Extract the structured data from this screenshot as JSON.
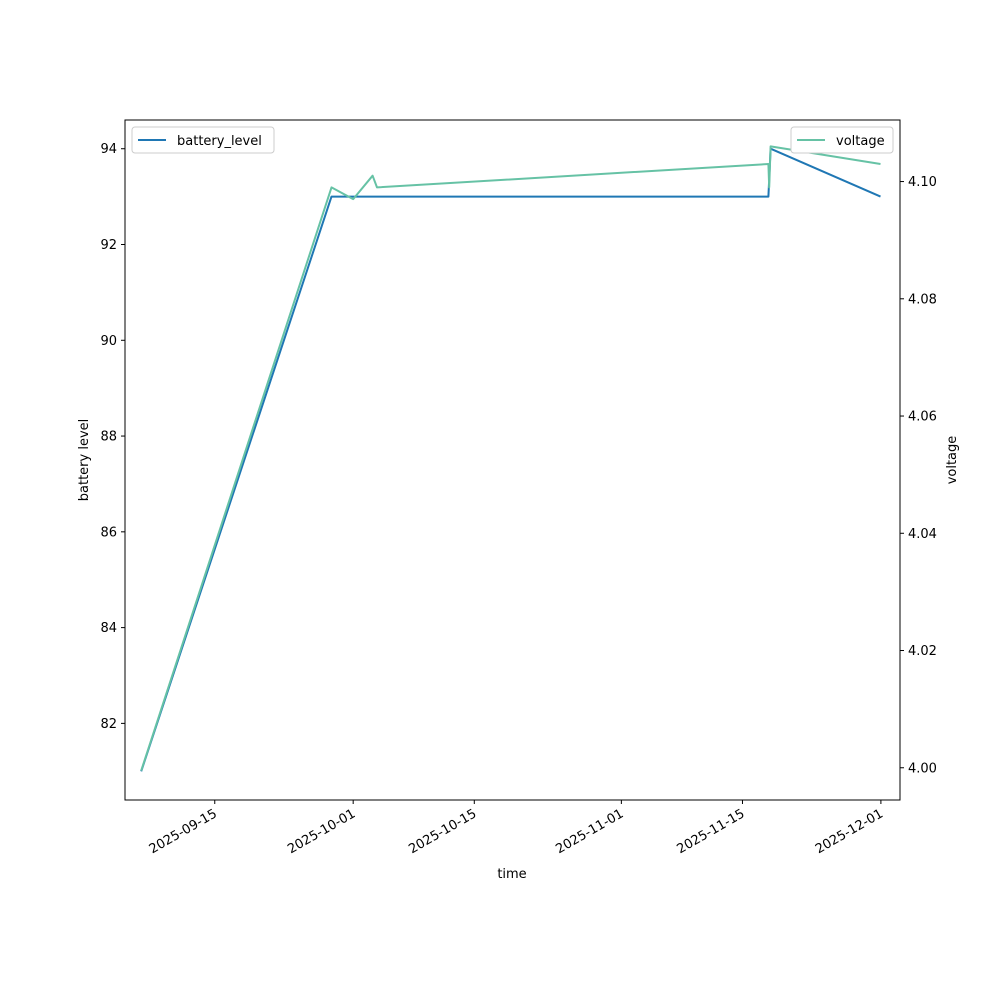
{
  "chart_data": {
    "type": "line",
    "xlabel": "time",
    "ylabel_left": "battery level",
    "ylabel_right": "voltage",
    "x_ticks": [
      "2025-09-15",
      "2025-10-01",
      "2025-10-15",
      "2025-11-01",
      "2025-11-15",
      "2025-12-01"
    ],
    "y_left_ticks": [
      82,
      84,
      86,
      88,
      90,
      92,
      94
    ],
    "y_right_ticks": [
      "4.00",
      "4.02",
      "4.04",
      "4.06",
      "4.08",
      "4.10"
    ],
    "x_range": [
      "2025-09-04T15:00",
      "2025-12-03T05:00"
    ],
    "y_left_range": [
      80.4,
      94.6
    ],
    "y_right_range": [
      3.9945,
      4.1105
    ],
    "grid": false,
    "series": [
      {
        "name": "battery_level",
        "axis": "left",
        "color": "#1f77b4",
        "legend_position": "upper left",
        "points": [
          [
            "2025-09-06T12:00",
            81
          ],
          [
            "2025-09-28T12:00",
            93
          ],
          [
            "2025-11-18T00:00",
            93
          ],
          [
            "2025-11-18T06:00",
            94
          ],
          [
            "2025-11-30T23:00",
            93
          ]
        ]
      },
      {
        "name": "voltage",
        "axis": "right",
        "color": "#66c2a5",
        "legend_position": "upper right",
        "points": [
          [
            "2025-09-06T12:00",
            3.9995
          ],
          [
            "2025-09-28T12:00",
            4.099
          ],
          [
            "2025-10-01T00:00",
            4.097
          ],
          [
            "2025-10-03T06:00",
            4.101
          ],
          [
            "2025-10-03T18:00",
            4.099
          ],
          [
            "2025-11-18T00:00",
            4.103
          ],
          [
            "2025-11-18T02:00",
            4.099
          ],
          [
            "2025-11-18T06:00",
            4.106
          ],
          [
            "2025-11-30T23:00",
            4.103
          ]
        ]
      }
    ]
  }
}
